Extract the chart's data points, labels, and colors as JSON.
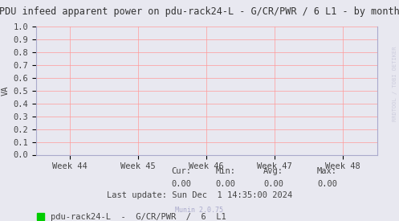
{
  "title": "PDU infeed apparent power on pdu-rack24-L - G/CR/PWR / 6 L1 - by month",
  "ylabel": "VA",
  "background_color": "#e8e8f0",
  "plot_bg_color": "#e8e8f0",
  "grid_color": "#ff9999",
  "x_labels": [
    "Week 44",
    "Week 45",
    "Week 46",
    "Week 47",
    "Week 48"
  ],
  "ylim": [
    0.0,
    1.0
  ],
  "yticks": [
    0.0,
    0.1,
    0.2,
    0.3,
    0.4,
    0.5,
    0.6,
    0.7,
    0.8,
    0.9,
    1.0
  ],
  "legend_label": "pdu-rack24-L  -  G/CR/PWR  /  6  L1",
  "legend_color": "#00cc00",
  "cur_val": "0.00",
  "min_val": "0.00",
  "avg_val": "0.00",
  "max_val": "0.00",
  "last_update": "Last update: Sun Dec  1 14:35:00 2024",
  "munin_version": "Munin 2.0.75",
  "title_fontsize": 8.5,
  "axis_fontsize": 7.5,
  "stats_fontsize": 7.5,
  "watermark": "RRDTOOL / TOBI OETIKER",
  "watermark_color": "#ccccdd",
  "spine_color": "#aaaacc",
  "text_color": "#444444"
}
